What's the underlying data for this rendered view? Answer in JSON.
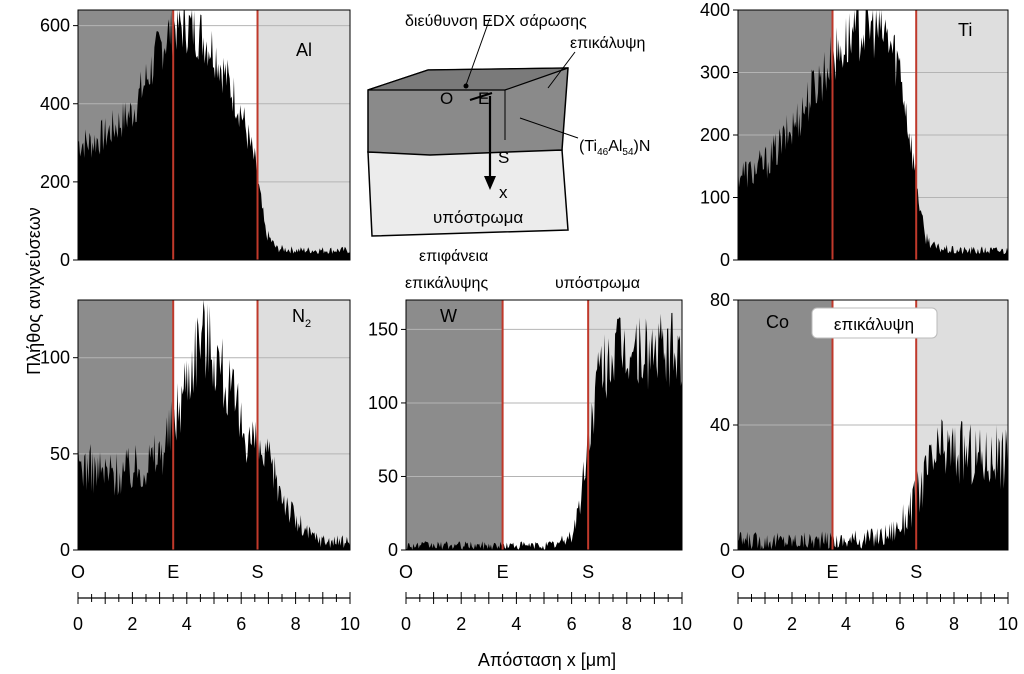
{
  "figure": {
    "ylabel": "Πλήθος ανιχνεύσεων",
    "xlabel": "Απόσταση x [μm]",
    "x_ticks": [
      "0",
      "2",
      "4",
      "6",
      "8",
      "10"
    ],
    "position_markers": [
      "O",
      "E",
      "S"
    ]
  },
  "schematic": {
    "scan_label": "διεύθυνση EDX σάρωσης",
    "coating_label": "επικάλυψη",
    "compound_prefix": "(Ti",
    "compound_ti_sub": "46",
    "compound_al": "Al",
    "compound_al_sub": "54",
    "compound_suffix": ")N",
    "substrate_label": "υπόστρωμα",
    "point_o": "O",
    "point_e": "E",
    "point_s": "S",
    "axis_x": "x"
  },
  "region_labels": {
    "coating_surface_line1": "επιφάνεια",
    "coating_surface_line2": "επικάλυψης",
    "substrate": "υπόστρωμα",
    "coating": "επικάλυψη"
  },
  "colors": {
    "outside_region": "#8c8c8c",
    "coating_region": "#ffffff",
    "substrate_region": "#dedede",
    "interface_line": "#c0392b",
    "signal": "#000000",
    "gridline": "#b4b4b4"
  },
  "chart_data": [
    {
      "type": "area",
      "element": "Al",
      "xlim": [
        0,
        10
      ],
      "ylim": [
        0,
        640
      ],
      "yticks": [
        0,
        200,
        400,
        600
      ],
      "interfaces": [
        3.5,
        6.6
      ],
      "x": [
        0,
        0.5,
        1,
        1.5,
        2,
        2.5,
        3,
        3.5,
        4,
        4.5,
        5,
        5.5,
        6,
        6.5,
        6.9,
        7.3,
        8,
        9,
        10
      ],
      "values": [
        300,
        300,
        320,
        350,
        380,
        460,
        540,
        600,
        600,
        580,
        540,
        460,
        380,
        250,
        70,
        30,
        25,
        25,
        25
      ]
    },
    {
      "type": "area",
      "element": "Ti",
      "xlim": [
        0,
        10
      ],
      "ylim": [
        0,
        400
      ],
      "yticks": [
        0,
        100,
        200,
        300,
        400
      ],
      "interfaces": [
        3.5,
        6.6
      ],
      "x": [
        0,
        0.5,
        1,
        1.5,
        2,
        2.5,
        3,
        3.5,
        4,
        4.5,
        5,
        5.5,
        6,
        6.5,
        6.9,
        7.3,
        8,
        9,
        10
      ],
      "values": [
        140,
        140,
        155,
        180,
        210,
        250,
        290,
        320,
        350,
        370,
        375,
        360,
        310,
        160,
        40,
        20,
        15,
        15,
        15
      ]
    },
    {
      "type": "area",
      "element": "N",
      "element_sub": "2",
      "xlim": [
        0,
        10
      ],
      "ylim": [
        0,
        130
      ],
      "yticks": [
        0,
        50,
        100
      ],
      "interfaces": [
        3.5,
        6.6
      ],
      "x": [
        0,
        0.5,
        1,
        1.5,
        2,
        2.5,
        3,
        3.5,
        4,
        4.5,
        5,
        5.5,
        6,
        6.5,
        7,
        7.5,
        8,
        8.5,
        9,
        10
      ],
      "values": [
        45,
        42,
        40,
        40,
        42,
        45,
        50,
        65,
        90,
        115,
        105,
        85,
        65,
        55,
        45,
        30,
        15,
        8,
        5,
        4
      ]
    },
    {
      "type": "area",
      "element": "W",
      "xlim": [
        0,
        10
      ],
      "ylim": [
        0,
        170
      ],
      "yticks": [
        0,
        50,
        100,
        150
      ],
      "interfaces": [
        3.5,
        6.6
      ],
      "x": [
        0,
        1,
        2,
        3,
        3.5,
        4,
        5,
        5.5,
        6,
        6.3,
        6.6,
        7,
        7.5,
        8,
        9,
        10
      ],
      "values": [
        3,
        3,
        3,
        3,
        3,
        3,
        3,
        4,
        10,
        30,
        75,
        120,
        135,
        135,
        135,
        135
      ]
    },
    {
      "type": "area",
      "element": "Co",
      "xlim": [
        0,
        10
      ],
      "ylim": [
        0,
        80
      ],
      "yticks": [
        0,
        40,
        80
      ],
      "interfaces": [
        3.5,
        6.6
      ],
      "x": [
        0,
        1,
        2,
        3,
        3.5,
        4,
        5,
        5.5,
        6,
        6.5,
        7,
        7.5,
        8,
        9,
        10
      ],
      "values": [
        3,
        3,
        3,
        3,
        3,
        3,
        4,
        5,
        8,
        15,
        25,
        32,
        32,
        30,
        30
      ]
    }
  ]
}
